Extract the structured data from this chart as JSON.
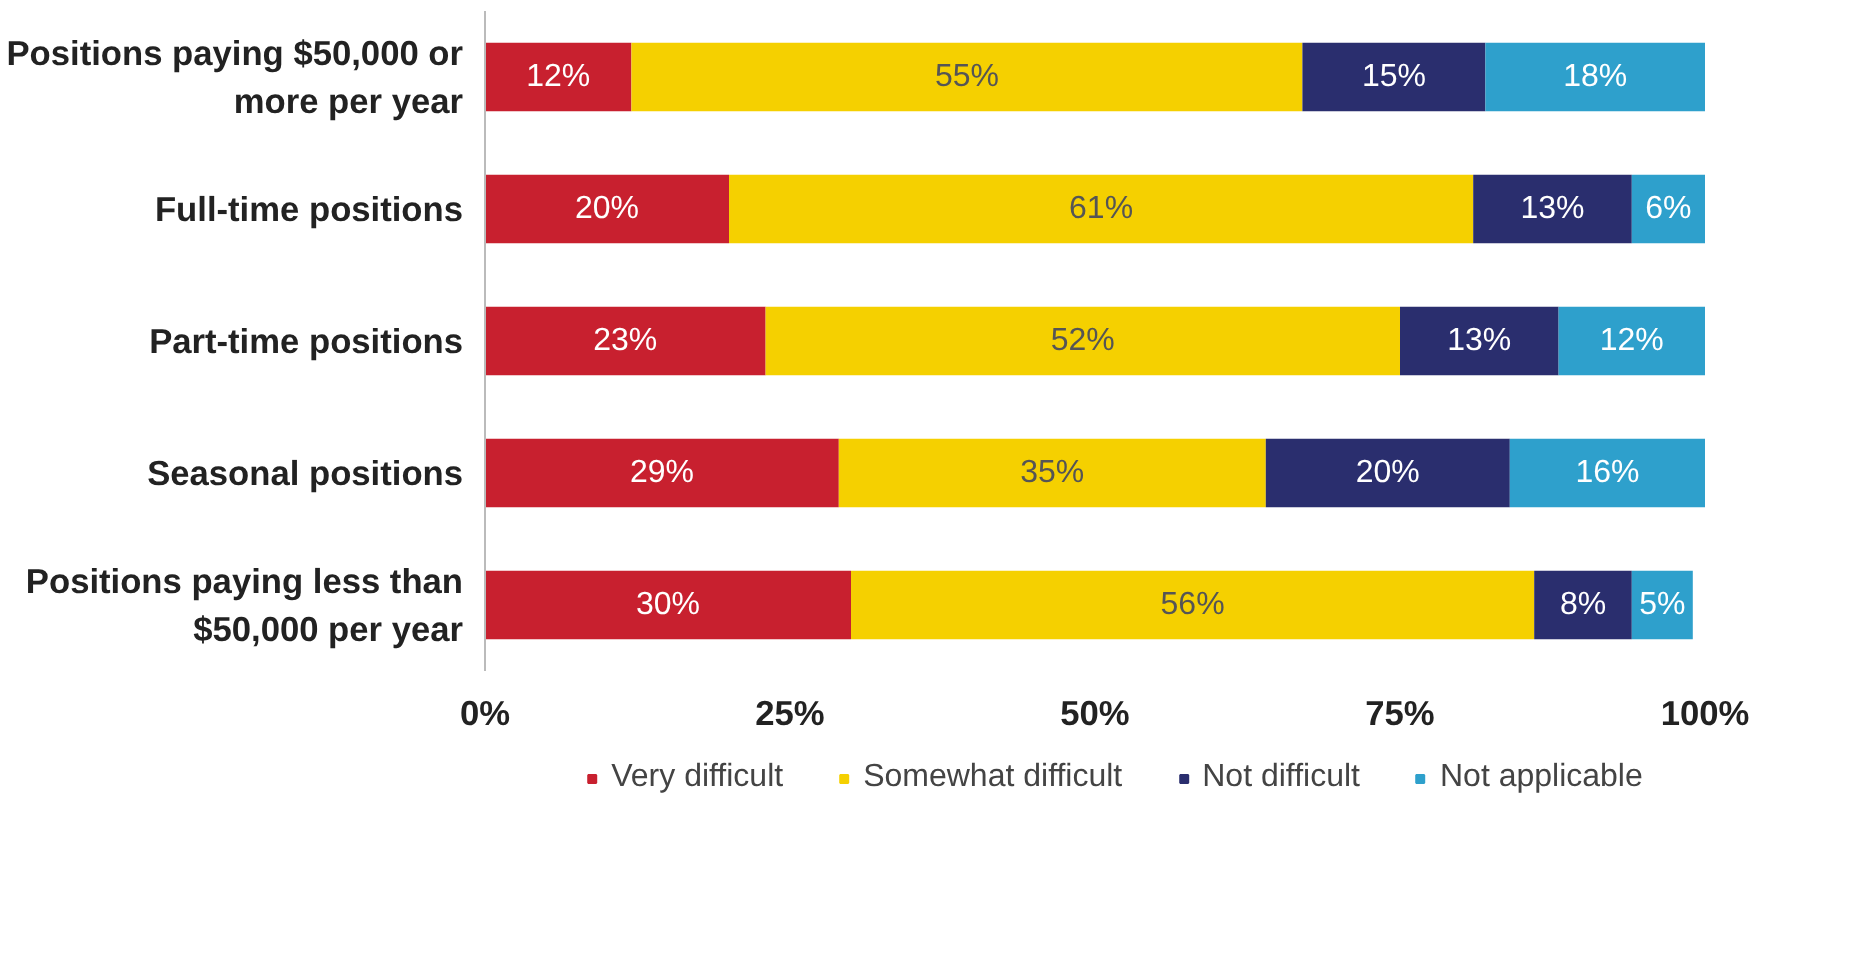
{
  "chart_data": {
    "type": "bar",
    "orientation": "horizontal",
    "stacked": true,
    "categories": [
      "Positions paying $50,000 or more per year",
      "Full-time positions",
      "Part-time positions",
      "Seasonal positions",
      "Positions paying less than $50,000 per year"
    ],
    "series": [
      {
        "name": "Very difficult",
        "color": "#c8202f",
        "values": [
          12,
          20,
          23,
          29,
          30
        ],
        "value_labels": [
          "12%",
          "20%",
          "23%",
          "29%",
          "30%"
        ]
      },
      {
        "name": "Somewhat difficult",
        "color": "#f5d000",
        "values": [
          55,
          61,
          52,
          35,
          56
        ],
        "value_labels": [
          "55%",
          "61%",
          "52%",
          "35%",
          "56%"
        ]
      },
      {
        "name": "Not difficult",
        "color": "#2a2e6e",
        "values": [
          15,
          13,
          13,
          20,
          8
        ],
        "value_labels": [
          "15%",
          "13%",
          "13%",
          "20%",
          "8%"
        ]
      },
      {
        "name": "Not applicable",
        "color": "#2ea0cc",
        "values": [
          18,
          6,
          12,
          16,
          5
        ],
        "value_labels": [
          "18%",
          "6%",
          "12%",
          "16%",
          "5%"
        ]
      }
    ],
    "xlim": [
      0,
      100
    ],
    "xticks": [
      {
        "value": 0,
        "label": "0%"
      },
      {
        "value": 25,
        "label": "25%"
      },
      {
        "value": 50,
        "label": "50%"
      },
      {
        "value": 75,
        "label": "75%"
      },
      {
        "value": 100,
        "label": "100%"
      }
    ],
    "grid": false,
    "legend": "bottom"
  }
}
